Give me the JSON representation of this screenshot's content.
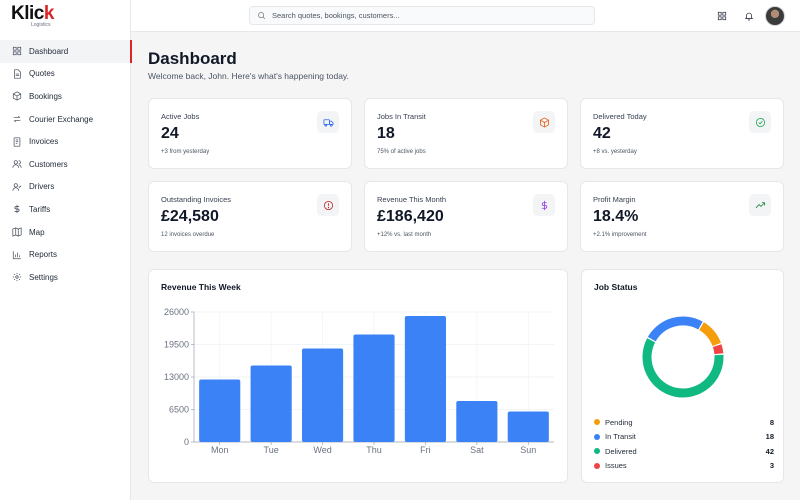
{
  "brand": {
    "name_main": "Klic",
    "name_accent": "k",
    "tagline": "Logistics"
  },
  "sidebar": {
    "items": [
      {
        "label": "Dashboard",
        "icon": "dashboard-icon"
      },
      {
        "label": "Quotes",
        "icon": "document-icon"
      },
      {
        "label": "Bookings",
        "icon": "package-icon"
      },
      {
        "label": "Courier Exchange",
        "icon": "swap-icon"
      },
      {
        "label": "Invoices",
        "icon": "invoice-icon"
      },
      {
        "label": "Customers",
        "icon": "users-icon"
      },
      {
        "label": "Drivers",
        "icon": "user-check-icon"
      },
      {
        "label": "Tariffs",
        "icon": "dollar-icon"
      },
      {
        "label": "Map",
        "icon": "map-icon"
      },
      {
        "label": "Reports",
        "icon": "bar-chart-icon"
      },
      {
        "label": "Settings",
        "icon": "gear-icon"
      }
    ],
    "active_index": 0,
    "accent_color": "#dc2626"
  },
  "topbar": {
    "search_placeholder": "Search quotes, bookings, customers...",
    "search_value": ""
  },
  "header": {
    "title": "Dashboard",
    "subtitle": "Welcome back, John. Here's what's happening today."
  },
  "stats": [
    {
      "label": "Active Jobs",
      "value": "24",
      "note": "+3 from yesterday",
      "icon": "truck-icon",
      "color": "#2563eb"
    },
    {
      "label": "Jobs In Transit",
      "value": "18",
      "note": "75% of active jobs",
      "icon": "package-icon",
      "color": "#ea580c"
    },
    {
      "label": "Delivered Today",
      "value": "42",
      "note": "+8 vs. yesterday",
      "icon": "check-circle-icon",
      "color": "#16a34a"
    },
    {
      "label": "Outstanding Invoices",
      "value": "£24,580",
      "note": "12 invoices overdue",
      "icon": "alert-circle-icon",
      "color": "#b91c1c"
    },
    {
      "label": "Revenue This Month",
      "value": "£186,420",
      "note": "+12% vs. last month",
      "icon": "dollar-icon",
      "color": "#9333ea"
    },
    {
      "label": "Profit Margin",
      "value": "18.4%",
      "note": "+2.1% improvement",
      "icon": "trending-up-icon",
      "color": "#15803d"
    }
  ],
  "revenue_panel": {
    "title": "Revenue This Week"
  },
  "status_panel": {
    "title": "Job Status",
    "items": [
      {
        "label": "Pending",
        "count": "8",
        "color": "#f59e0b"
      },
      {
        "label": "In Transit",
        "count": "18",
        "color": "#3b82f6"
      },
      {
        "label": "Delivered",
        "count": "42",
        "color": "#10b981"
      },
      {
        "label": "Issues",
        "count": "3",
        "color": "#ef4444"
      }
    ]
  },
  "chart_data": [
    {
      "type": "bar",
      "title": "Revenue This Week",
      "categories": [
        "Mon",
        "Tue",
        "Wed",
        "Thu",
        "Fri",
        "Sat",
        "Sun"
      ],
      "values": [
        12500,
        15300,
        18700,
        21500,
        25200,
        8200,
        6100
      ],
      "ylim": [
        0,
        26000
      ],
      "yticks": [
        "0",
        "6500",
        "13000",
        "19500",
        "26000"
      ],
      "color": "#3b82f6",
      "grid": true
    },
    {
      "type": "pie",
      "title": "Job Status",
      "labels": [
        "Pending",
        "In Transit",
        "Delivered",
        "Issues"
      ],
      "values": [
        8,
        18,
        42,
        3
      ],
      "colors": [
        "#f59e0b",
        "#3b82f6",
        "#10b981",
        "#ef4444"
      ],
      "donut": true
    }
  ]
}
